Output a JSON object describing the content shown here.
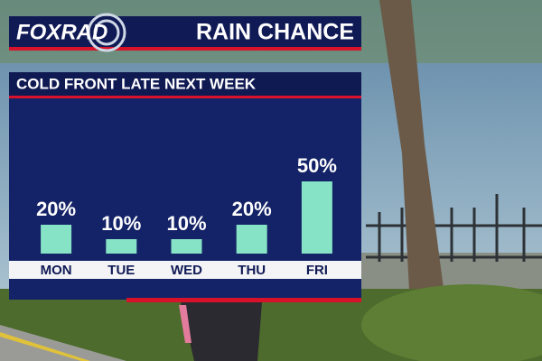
{
  "logo": "FOXRAD",
  "chart_data": {
    "type": "bar",
    "title": "RAIN CHANCE",
    "subtitle": "COLD FRONT LATE NEXT WEEK",
    "categories": [
      "MON",
      "TUE",
      "WED",
      "THU",
      "FRI"
    ],
    "values": [
      20,
      10,
      10,
      20,
      50
    ],
    "value_labels": [
      "20%",
      "10%",
      "10%",
      "20%",
      "50%"
    ],
    "color": "#86e3c6"
  }
}
